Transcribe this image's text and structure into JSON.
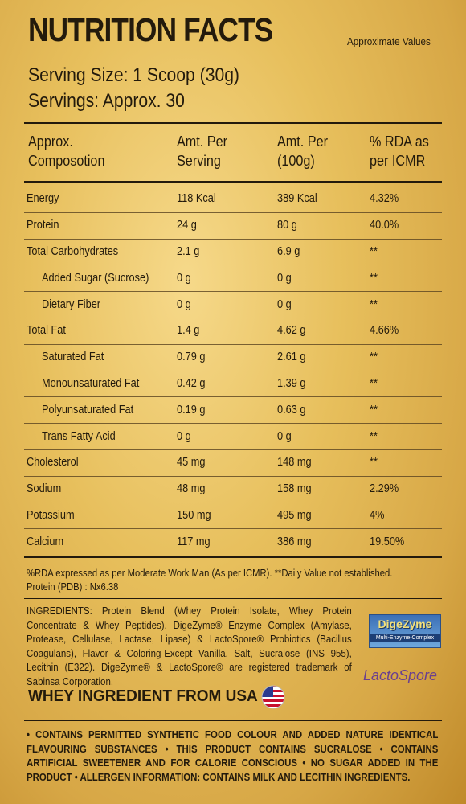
{
  "header": {
    "title": "NUTRITION FACTS",
    "note": "Approximate Values",
    "serving_size": "Serving Size: 1 Scoop (30g)",
    "servings": "Servings: Approx. 30"
  },
  "table": {
    "columns": [
      [
        "Approx.",
        "Composotion"
      ],
      [
        "Amt. Per",
        "Serving"
      ],
      [
        "Amt. Per",
        "(100g)"
      ],
      [
        "% RDA as",
        "per ICMR"
      ]
    ],
    "rows": [
      {
        "name": "Energy",
        "serving": "118 Kcal",
        "per100g": "389 Kcal",
        "rda": "4.32%",
        "sub": false
      },
      {
        "name": "Protein",
        "serving": "24 g",
        "per100g": "80 g",
        "rda": "40.0%",
        "sub": false
      },
      {
        "name": "Total Carbohydrates",
        "serving": "2.1 g",
        "per100g": "6.9 g",
        "rda": "**",
        "sub": false
      },
      {
        "name": "Added Sugar (Sucrose)",
        "serving": "0 g",
        "per100g": "0 g",
        "rda": "**",
        "sub": true
      },
      {
        "name": "Dietary Fiber",
        "serving": "0 g",
        "per100g": "0 g",
        "rda": "**",
        "sub": true
      },
      {
        "name": "Total Fat",
        "serving": "1.4 g",
        "per100g": "4.62 g",
        "rda": "4.66%",
        "sub": false
      },
      {
        "name": "Saturated Fat",
        "serving": "0.79 g",
        "per100g": "2.61 g",
        "rda": "**",
        "sub": true
      },
      {
        "name": "Monounsaturated Fat",
        "serving": "0.42 g",
        "per100g": "1.39 g",
        "rda": "**",
        "sub": true
      },
      {
        "name": "Polyunsaturated Fat",
        "serving": "0.19 g",
        "per100g": "0.63 g",
        "rda": "**",
        "sub": true
      },
      {
        "name": "Trans Fatty Acid",
        "serving": "0 g",
        "per100g": "0 g",
        "rda": "**",
        "sub": true
      },
      {
        "name": "Cholesterol",
        "serving": "45 mg",
        "per100g": "148 mg",
        "rda": "**",
        "sub": false
      },
      {
        "name": "Sodium",
        "serving": "48 mg",
        "per100g": "158 mg",
        "rda": "2.29%",
        "sub": false
      },
      {
        "name": "Potassium",
        "serving": "150 mg",
        "per100g": "495 mg",
        "rda": "4%",
        "sub": false
      },
      {
        "name": "Calcium",
        "serving": "117 mg",
        "per100g": "386 mg",
        "rda": "19.50%",
        "sub": false
      }
    ]
  },
  "footnotes": [
    "%RDA expressed as per Moderate Work Man (As per ICMR). **Daily Value not established.",
    "Protein (PDB) : Nx6.38"
  ],
  "ingredients": "INGREDIENTS: Protein Blend (Whey Protein Isolate, Whey Protein Concentrate & Whey Peptides), DigeZyme® Enzyme Complex (Amylase, Protease, Cellulase, Lactase, Lipase) & LactoSpore® Probiotics (Bacillus Coagulans), Flavor & Coloring-Except Vanilla, Salt, Sucralose (INS 955), Lecithin (E322). DigeZyme® & LactoSpore® are registered trademark of Sabinsa Corporation.",
  "logos": {
    "digezyme": "DigeZyme",
    "digezyme_tagline": "Multi-Enzyme-Complex",
    "lactospore": "LactoSpore"
  },
  "origin": "WHEY INGREDIENT FROM USA",
  "notice": "• CONTAINS PERMITTED SYNTHETIC FOOD COLOUR AND ADDED NATURE IDENTICAL FLAVOURING SUBSTANCES • THIS PRODUCT CONTAINS SUCRALOSE • CONTAINS ARTIFICIAL SWEETENER AND FOR CALORIE CONSCIOUS • NO SUGAR ADDED IN THE PRODUCT • ALLERGEN INFORMATION: CONTAINS MILK AND LECITHIN INGREDIENTS."
}
